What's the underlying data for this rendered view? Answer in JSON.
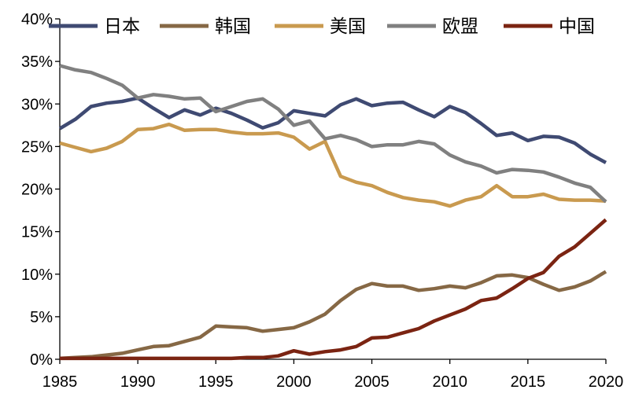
{
  "chart_data": {
    "type": "line",
    "title": "",
    "xlabel": "",
    "ylabel": "",
    "x": [
      1985,
      1986,
      1987,
      1988,
      1989,
      1990,
      1991,
      1992,
      1993,
      1994,
      1995,
      1996,
      1997,
      1998,
      1999,
      2000,
      2001,
      2002,
      2003,
      2004,
      2005,
      2006,
      2007,
      2008,
      2009,
      2010,
      2011,
      2012,
      2013,
      2014,
      2015,
      2016,
      2017,
      2018,
      2019,
      2020
    ],
    "xlim": [
      1985,
      2020
    ],
    "ylim": [
      0,
      40
    ],
    "x_ticks": [
      1985,
      1990,
      1995,
      2000,
      2005,
      2010,
      2015,
      2020
    ],
    "y_ticks": [
      0,
      5,
      10,
      15,
      20,
      25,
      30,
      35,
      40
    ],
    "y_tick_labels": [
      "0%",
      "5%",
      "10%",
      "15%",
      "20%",
      "25%",
      "30%",
      "35%",
      "40%"
    ],
    "grid": false,
    "legend_position": "top",
    "series": [
      {
        "name": "日本",
        "color": "#3f4a72",
        "values": [
          27.1,
          28.2,
          29.7,
          30.1,
          30.3,
          30.7,
          29.5,
          28.4,
          29.3,
          28.7,
          29.5,
          28.9,
          28.1,
          27.2,
          27.8,
          29.2,
          28.9,
          28.6,
          29.9,
          30.6,
          29.8,
          30.1,
          30.2,
          29.3,
          28.5,
          29.7,
          29.0,
          27.7,
          26.3,
          26.6,
          25.7,
          26.2,
          26.1,
          25.4,
          24.1,
          23.1
        ]
      },
      {
        "name": "韩国",
        "color": "#866845",
        "values": [
          0.1,
          0.2,
          0.3,
          0.5,
          0.7,
          1.1,
          1.5,
          1.6,
          2.1,
          2.6,
          3.9,
          3.8,
          3.7,
          3.3,
          3.5,
          3.7,
          4.4,
          5.3,
          6.9,
          8.2,
          8.9,
          8.6,
          8.6,
          8.1,
          8.3,
          8.6,
          8.4,
          9.0,
          9.8,
          9.9,
          9.6,
          8.8,
          8.1,
          8.5,
          9.2,
          10.3
        ]
      },
      {
        "name": "美国",
        "color": "#c99a4f",
        "values": [
          25.4,
          24.9,
          24.4,
          24.8,
          25.6,
          27.0,
          27.1,
          27.6,
          26.9,
          27.0,
          27.0,
          26.7,
          26.5,
          26.5,
          26.6,
          26.1,
          24.7,
          25.6,
          21.5,
          20.8,
          20.4,
          19.6,
          19.0,
          18.7,
          18.5,
          18.0,
          18.7,
          19.1,
          20.4,
          19.1,
          19.1,
          19.4,
          18.8,
          18.7,
          18.7,
          18.6
        ]
      },
      {
        "name": "欧盟",
        "color": "#808080",
        "values": [
          34.5,
          34.0,
          33.7,
          33.0,
          32.2,
          30.7,
          31.1,
          30.9,
          30.6,
          30.7,
          29.1,
          29.7,
          30.3,
          30.6,
          29.4,
          27.5,
          28.0,
          25.9,
          26.3,
          25.8,
          25.0,
          25.2,
          25.2,
          25.6,
          25.3,
          24.0,
          23.2,
          22.7,
          21.9,
          22.3,
          22.2,
          22.0,
          21.4,
          20.7,
          20.2,
          18.5
        ]
      },
      {
        "name": "中国",
        "color": "#7b2412",
        "values": [
          0.1,
          0.1,
          0.1,
          0.1,
          0.1,
          0.1,
          0.1,
          0.1,
          0.1,
          0.1,
          0.1,
          0.1,
          0.2,
          0.2,
          0.4,
          1.0,
          0.6,
          0.9,
          1.1,
          1.5,
          2.5,
          2.6,
          3.1,
          3.6,
          4.5,
          5.2,
          5.9,
          6.9,
          7.2,
          8.3,
          9.5,
          10.2,
          12.1,
          13.2,
          14.8,
          16.4
        ]
      }
    ]
  }
}
